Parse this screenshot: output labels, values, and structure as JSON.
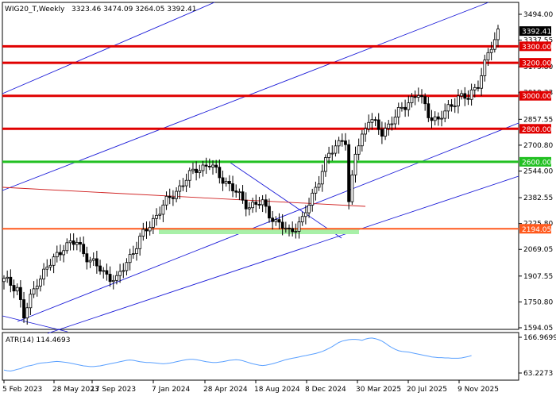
{
  "colors": {
    "background": "#ffffff",
    "candle": "#000000",
    "support_red": "#e00000",
    "support_green": "#22c022",
    "support_orange": "#ff5a1e",
    "support_zone": "#a8f0a8",
    "channel_blue": "#1a1ad8",
    "atr_line": "#5aa0ff",
    "price_label_bg": "#000000",
    "price_label_fg": "#ffffff"
  },
  "chart_data": [
    {
      "type": "candlestick",
      "title": "WIG20_T,Weekly",
      "ohlc_header": "3323.46 3474.09 3264.05 3392.41",
      "current_price": "3392.41",
      "y_ticks": [
        "3494.00",
        "3337.55",
        "3175.80",
        "3019.33",
        "2857.55",
        "2700.80",
        "2544.00",
        "2382.55",
        "2225.80",
        "2069.05",
        "1907.55",
        "1750.80",
        "1594.05"
      ],
      "x_ticks": [
        "5 Feb 2023",
        "28 May 2023",
        "17 Sep 2023",
        "7 Jan 2024",
        "28 Apr 2024",
        "18 Aug 2024",
        "8 Dec 2024",
        "30 Mar 2025",
        "20 Jul 2025",
        "9 Nov 2025"
      ],
      "ylim": [
        1594.05,
        3494.0
      ],
      "grid": false,
      "levels": [
        {
          "label": "3300.00",
          "value": 3300,
          "color": "#e00000"
        },
        {
          "label": "3200.00",
          "value": 3200,
          "color": "#e00000"
        },
        {
          "label": "3000.00",
          "value": 3000,
          "color": "#e00000"
        },
        {
          "label": "2800.00",
          "value": 2800,
          "color": "#e00000"
        },
        {
          "label": "2600.00",
          "value": 2600,
          "color": "#22c022"
        },
        {
          "label": "2194.05",
          "value": 2194.05,
          "color": "#ff5a1e"
        }
      ],
      "anchors": [
        [
          0,
          1880
        ],
        [
          4,
          1840
        ],
        [
          6,
          1660
        ],
        [
          10,
          1880
        ],
        [
          14,
          1980
        ],
        [
          18,
          2090
        ],
        [
          22,
          2110
        ],
        [
          26,
          2000
        ],
        [
          30,
          1930
        ],
        [
          34,
          1880
        ],
        [
          38,
          2030
        ],
        [
          42,
          2160
        ],
        [
          46,
          2280
        ],
        [
          50,
          2380
        ],
        [
          54,
          2470
        ],
        [
          58,
          2560
        ],
        [
          62,
          2580
        ],
        [
          66,
          2500
        ],
        [
          70,
          2410
        ],
        [
          74,
          2330
        ],
        [
          78,
          2350
        ],
        [
          82,
          2230
        ],
        [
          86,
          2180
        ],
        [
          90,
          2240
        ],
        [
          94,
          2450
        ],
        [
          98,
          2640
        ],
        [
          102,
          2750
        ],
        [
          103,
          2720
        ],
        [
          104,
          2330
        ],
        [
          106,
          2660
        ],
        [
          110,
          2860
        ],
        [
          114,
          2780
        ],
        [
          118,
          2870
        ],
        [
          122,
          2970
        ],
        [
          125,
          3010
        ],
        [
          128,
          2890
        ],
        [
          131,
          2850
        ],
        [
          134,
          2920
        ],
        [
          137,
          3000
        ],
        [
          140,
          2980
        ],
        [
          143,
          3080
        ],
        [
          146,
          3250
        ],
        [
          148,
          3330
        ],
        [
          149,
          3392
        ]
      ]
    },
    {
      "type": "line",
      "title": "ATR(14) 114.4693",
      "y_ticks": [
        "166.9699",
        "63.2273"
      ],
      "ylim": [
        63.2273,
        166.9699
      ],
      "values": [
        72,
        70,
        69,
        71,
        74,
        76,
        80,
        83,
        85,
        87,
        90,
        92,
        93,
        94,
        95,
        96,
        97,
        96,
        95,
        94,
        92,
        90,
        88,
        86,
        84,
        83,
        82,
        82,
        83,
        84,
        86,
        88,
        90,
        92,
        94,
        96,
        98,
        100,
        101,
        100,
        98,
        96,
        95,
        94,
        94,
        93,
        92,
        91,
        90,
        91,
        92,
        94,
        96,
        98,
        100,
        102,
        103,
        103,
        102,
        100,
        98,
        96,
        95,
        94,
        94,
        95,
        96,
        98,
        100,
        101,
        102,
        101,
        99,
        96,
        93,
        90,
        88,
        86,
        85,
        86,
        88,
        90,
        93,
        96,
        99,
        102,
        104,
        106,
        108,
        110,
        112,
        114,
        116,
        118,
        120,
        123,
        126,
        130,
        135,
        140,
        146,
        152,
        156,
        158,
        160,
        161,
        161,
        160,
        158,
        162,
        164,
        165,
        163,
        160,
        156,
        150,
        143,
        137,
        132,
        128,
        126,
        125,
        124,
        122,
        120,
        118,
        116,
        114,
        112,
        110,
        109,
        108,
        108,
        107,
        107,
        106,
        106,
        106,
        107,
        109,
        111,
        114
      ]
    }
  ]
}
